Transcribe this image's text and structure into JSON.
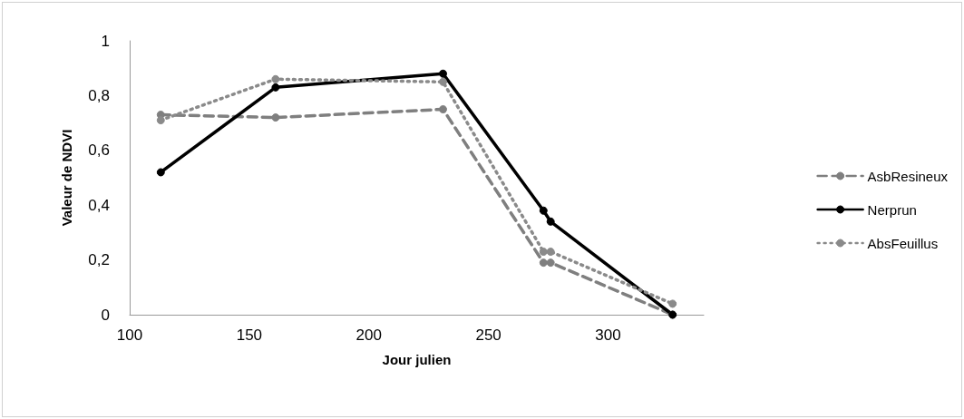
{
  "chart_data": {
    "type": "line",
    "xlabel": "Jour julien",
    "ylabel": "Valeur de NDVI",
    "x": [
      113,
      161,
      231,
      273,
      276,
      327
    ],
    "series": [
      {
        "name": "AsbResineux",
        "color": "#7f7f7f",
        "line_style": "dashed",
        "values": [
          0.73,
          0.72,
          0.75,
          0.19,
          0.19,
          0
        ]
      },
      {
        "name": "Nerprun",
        "color": "#000000",
        "line_style": "solid",
        "values": [
          0.52,
          0.83,
          0.88,
          0.38,
          0.34,
          0
        ]
      },
      {
        "name": "AbsFeuillus",
        "color": "#8a8a8a",
        "line_style": "dotted",
        "values": [
          0.71,
          0.86,
          0.85,
          0.23,
          0.23,
          0.04
        ]
      }
    ],
    "xlim": [
      100,
      340
    ],
    "xticks": [
      100,
      150,
      200,
      250,
      300
    ],
    "ylim": [
      0,
      1
    ],
    "yticks": [
      0,
      {
        "value": 0.2,
        "label": "0,2"
      },
      {
        "value": 0.4,
        "label": "0,4"
      },
      {
        "value": 0.6,
        "label": "0,6"
      },
      {
        "value": 0.8,
        "label": "0,8"
      },
      1
    ],
    "marker": "circle",
    "grid": false,
    "legend": "right"
  }
}
